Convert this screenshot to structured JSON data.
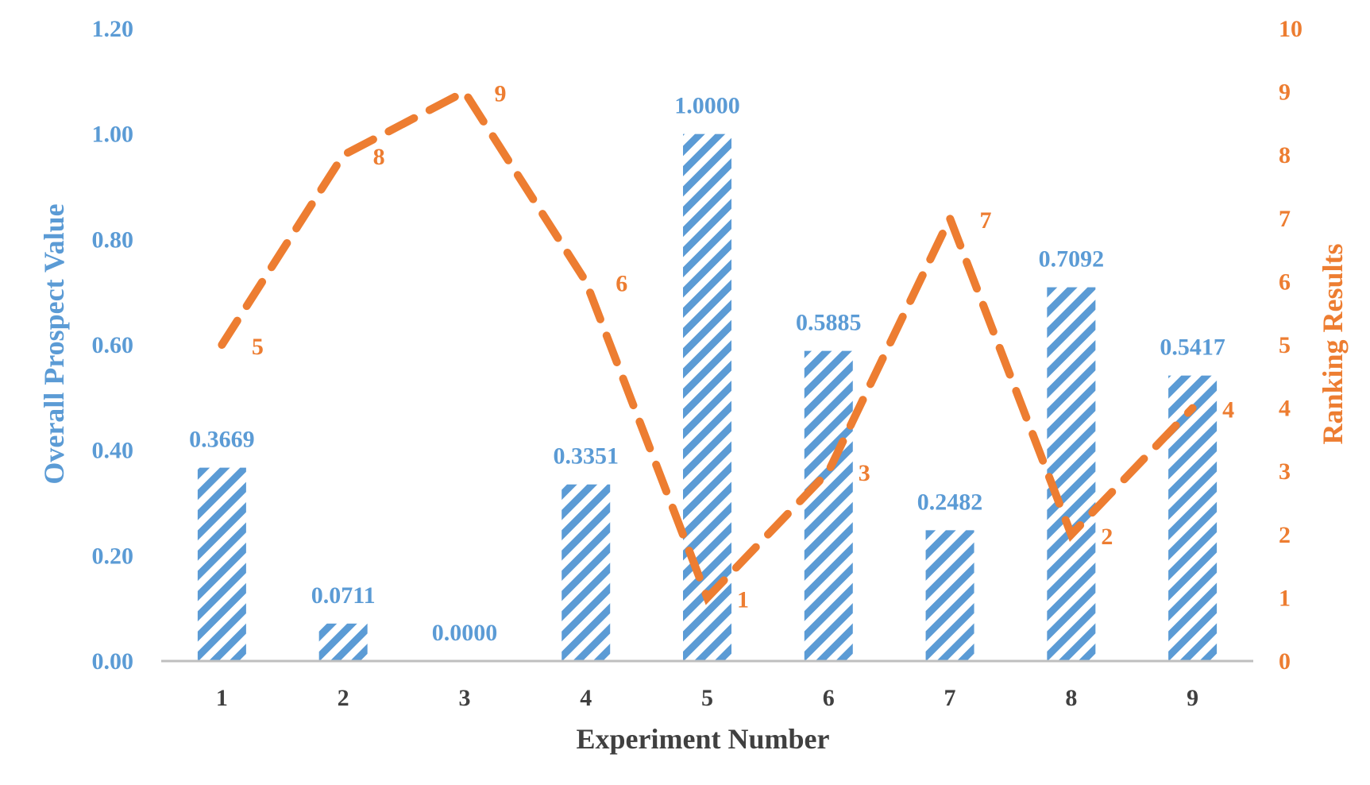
{
  "chart_data": {
    "type": "bar",
    "title": "",
    "xlabel": "Experiment Number",
    "ylabel": "Overall Prospect Value",
    "y2label": "Ranking Results",
    "categories": [
      "1",
      "2",
      "3",
      "4",
      "5",
      "6",
      "7",
      "8",
      "9"
    ],
    "ylim": [
      0,
      1.2
    ],
    "yticks": [
      "0.00",
      "0.20",
      "0.40",
      "0.60",
      "0.80",
      "1.00",
      "1.20"
    ],
    "y2lim": [
      0,
      10
    ],
    "y2ticks": [
      "0",
      "1",
      "2",
      "3",
      "4",
      "5",
      "6",
      "7",
      "8",
      "9",
      "10"
    ],
    "grid": false,
    "series": [
      {
        "kind": "bar",
        "axis": "left",
        "pattern": "diagonal-hatch",
        "color": "#5B9BD5",
        "values": [
          0.3669,
          0.0711,
          0.0,
          0.3351,
          1.0,
          0.5885,
          0.2482,
          0.7092,
          0.5417
        ],
        "labels": [
          "0.3669",
          "0.0711",
          "0.0000",
          "0.3351",
          "1.0000",
          "0.5885",
          "0.2482",
          "0.7092",
          "0.5417"
        ]
      },
      {
        "kind": "line",
        "axis": "right",
        "style": "dashed",
        "color": "#ED7D31",
        "values": [
          5,
          8,
          9,
          6,
          1,
          3,
          7,
          2,
          4
        ],
        "labels": [
          "5",
          "8",
          "9",
          "6",
          "1",
          "3",
          "7",
          "2",
          "4"
        ]
      }
    ]
  }
}
